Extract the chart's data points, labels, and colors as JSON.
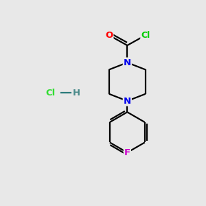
{
  "background_color": "#e8e8e8",
  "atom_colors": {
    "C": "#000000",
    "N": "#0000ee",
    "O": "#ff0000",
    "Cl_main": "#00cc00",
    "Cl_hcl": "#33dd33",
    "F": "#cc00cc",
    "H": "#4a8a8a"
  },
  "figsize": [
    3.0,
    3.0
  ],
  "dpi": 100,
  "bond_lw": 1.6,
  "font_size": 9.5
}
